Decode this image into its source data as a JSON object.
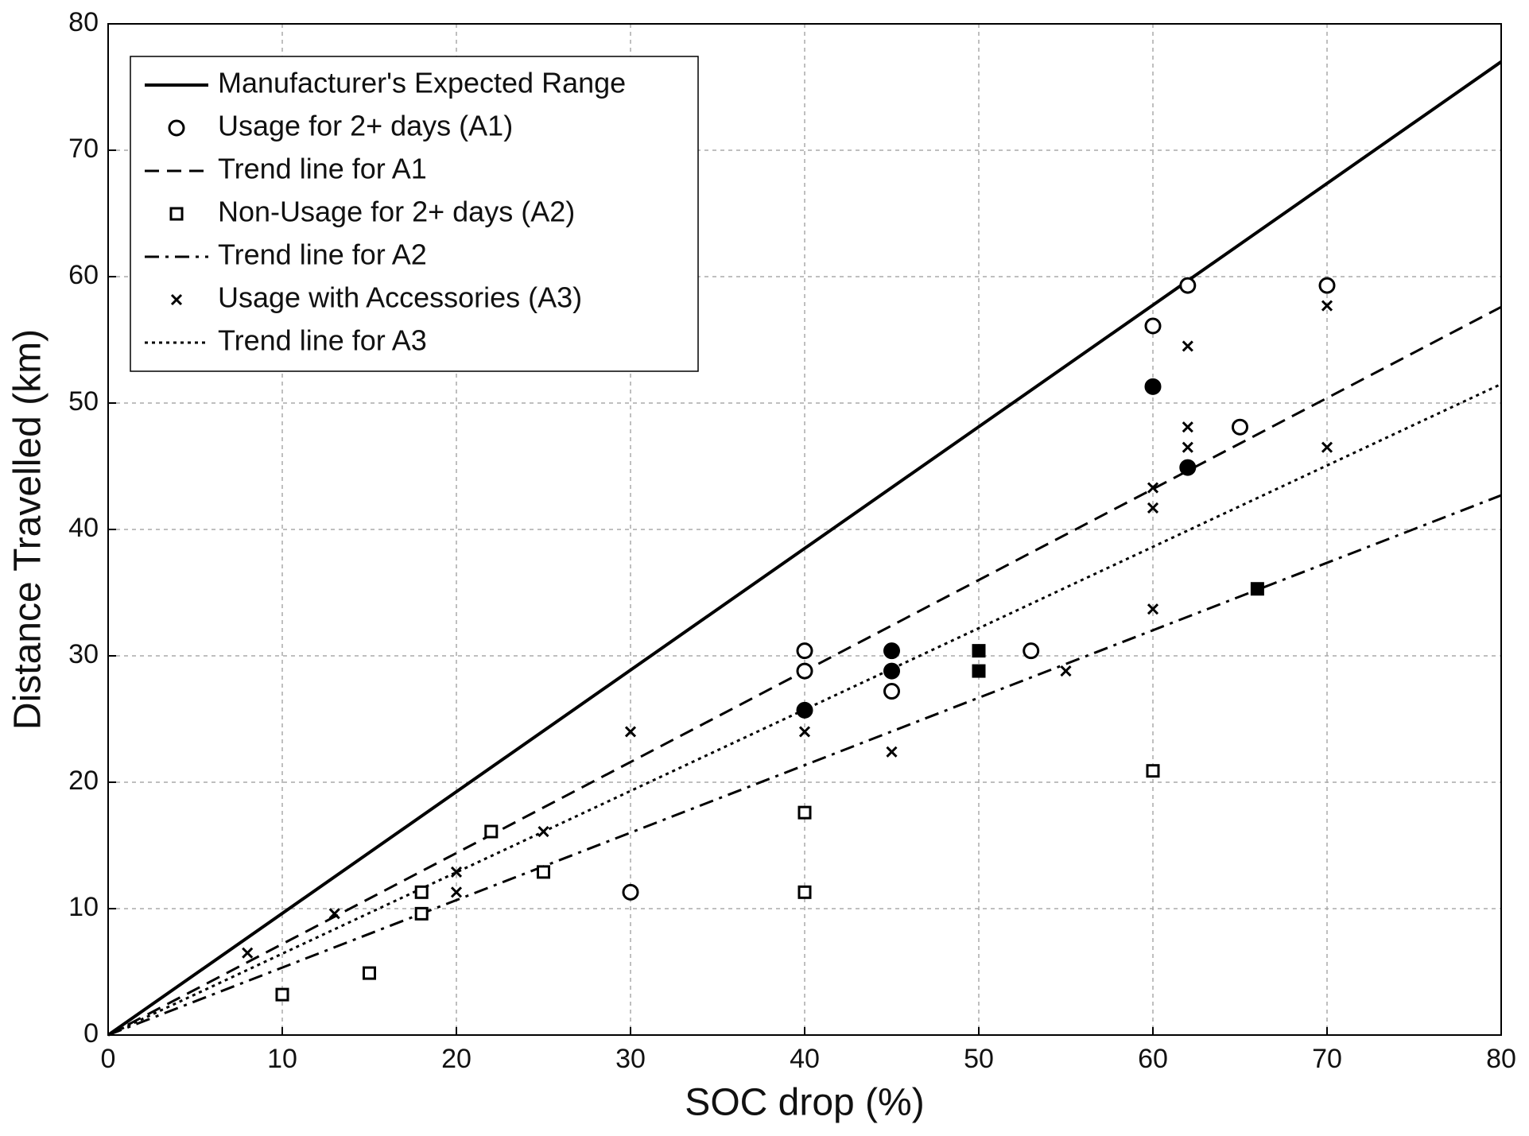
{
  "chart_data": {
    "type": "scatter",
    "xlabel": "SOC drop (%)",
    "ylabel": "Distance Travelled (km)",
    "xlim": [
      0,
      80
    ],
    "ylim": [
      0,
      80
    ],
    "xticks": [
      0,
      10,
      20,
      30,
      40,
      50,
      60,
      70,
      80
    ],
    "yticks": [
      0,
      10,
      20,
      30,
      40,
      50,
      60,
      70,
      80
    ],
    "grid": true,
    "legend": "upper left",
    "series": [
      {
        "name": "Manufacturer's Expected Range",
        "color": "#000000",
        "marker": "none",
        "line_style": "solid",
        "x": [
          0,
          80
        ],
        "values": [
          0,
          77
        ]
      },
      {
        "name": "Usage for 2+ days (A1)",
        "color": "#000000",
        "marker": "circle",
        "line_style": "none",
        "x": [
          40,
          40,
          45,
          45,
          45,
          40,
          53,
          30,
          60,
          60,
          62,
          62,
          65,
          70
        ],
        "values": [
          30.4,
          28.8,
          30.4,
          28.8,
          27.2,
          25.7,
          30.4,
          11.3,
          56.1,
          51.3,
          59.3,
          44.9,
          48.1,
          59.3
        ],
        "filled": [
          false,
          false,
          true,
          true,
          false,
          true,
          false,
          false,
          false,
          true,
          false,
          true,
          false,
          false
        ]
      },
      {
        "name": "Trend line for A1",
        "color": "#000000",
        "marker": "none",
        "line_style": "dashed",
        "x": [
          0,
          80
        ],
        "values": [
          0,
          57.6
        ]
      },
      {
        "name": "Non-Usage for 2+ days (A2)",
        "color": "#000000",
        "marker": "square",
        "line_style": "none",
        "x": [
          10,
          15,
          18,
          18,
          22,
          25,
          40,
          40,
          50,
          50,
          60,
          66
        ],
        "values": [
          3.2,
          4.9,
          9.6,
          11.3,
          16.1,
          12.9,
          17.6,
          11.3,
          30.4,
          28.8,
          20.9,
          35.3
        ],
        "filled": [
          false,
          false,
          false,
          false,
          false,
          false,
          false,
          false,
          true,
          true,
          false,
          true
        ]
      },
      {
        "name": "Trend line for A2",
        "color": "#000000",
        "marker": "none",
        "line_style": "dashdot",
        "x": [
          0,
          80
        ],
        "values": [
          0,
          42.7
        ]
      },
      {
        "name": "Usage with Accessories (A3)",
        "color": "#000000",
        "marker": "x",
        "line_style": "none",
        "x": [
          8,
          13,
          20,
          20,
          25,
          30,
          40,
          45,
          55,
          60,
          60,
          60,
          62,
          62,
          62,
          70,
          70
        ],
        "values": [
          6.5,
          9.6,
          12.9,
          11.3,
          16.1,
          24.0,
          24.0,
          22.4,
          28.8,
          43.3,
          41.7,
          33.7,
          54.5,
          48.1,
          46.5,
          57.7,
          46.5
        ]
      },
      {
        "name": "Trend line for A3",
        "color": "#000000",
        "marker": "none",
        "line_style": "dotted",
        "x": [
          0,
          80
        ],
        "values": [
          0,
          51.5
        ]
      }
    ]
  }
}
